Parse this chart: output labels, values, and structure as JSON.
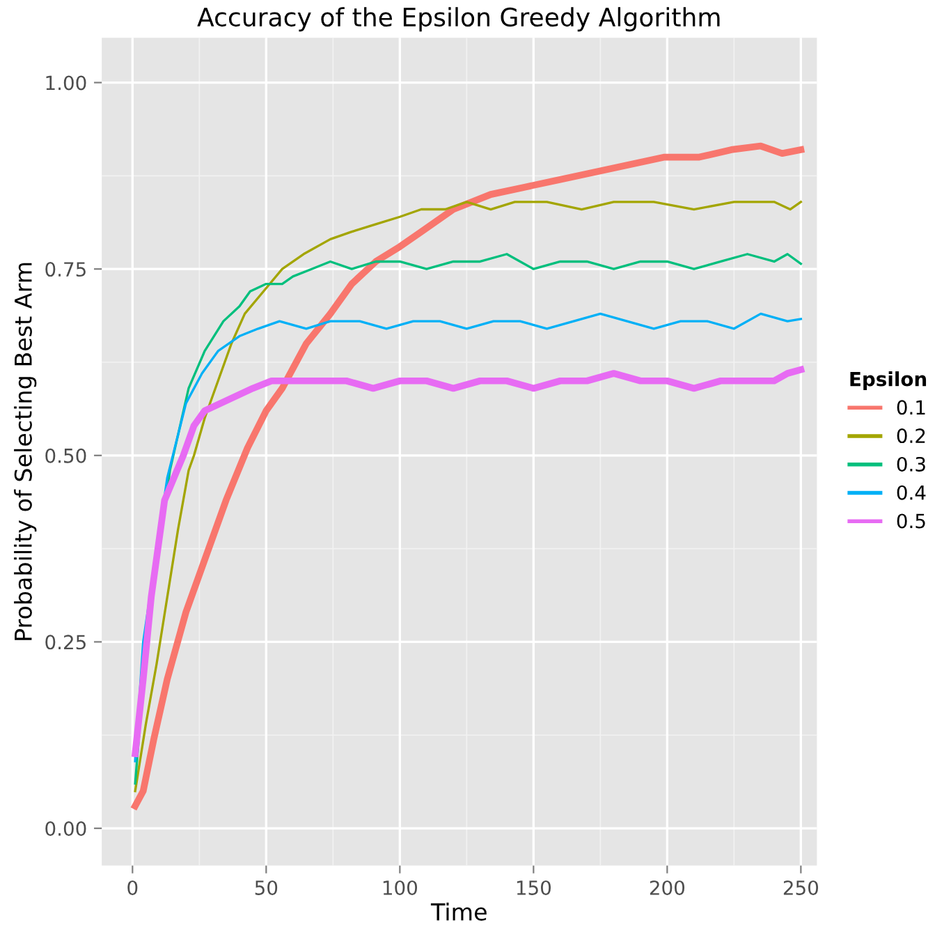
{
  "chart_data": {
    "type": "line",
    "title": "Accuracy of the Epsilon Greedy Algorithm",
    "xlabel": "Time",
    "ylabel": "Probability of Selecting Best Arm",
    "legend_title": "Epsilon",
    "legend": "right",
    "grid": true,
    "marker": "none",
    "line_style": "solid",
    "xlim": [
      -11.5,
      256
    ],
    "xticks": [
      0,
      50,
      100,
      150,
      200,
      250
    ],
    "ylim": [
      -0.05,
      1.06
    ],
    "yticks": [
      {
        "value": 0,
        "label": "0.00"
      },
      {
        "value": 0.25,
        "label": "0.25"
      },
      {
        "value": 0.5,
        "label": "0.50"
      },
      {
        "value": 0.75,
        "label": "0.75"
      },
      {
        "value": 1,
        "label": "1.00"
      }
    ],
    "series": [
      {
        "name": "0.1",
        "color": "#f8766d",
        "x": [
          1,
          4,
          8,
          13,
          20,
          27,
          35,
          43,
          50,
          56,
          65,
          74,
          82,
          91,
          100,
          108,
          120,
          134,
          147,
          160,
          173,
          186,
          199,
          212,
          224,
          235,
          243,
          250
        ],
        "values": [
          0.03,
          0.05,
          0.12,
          0.2,
          0.29,
          0.36,
          0.44,
          0.51,
          0.56,
          0.59,
          0.65,
          0.69,
          0.73,
          0.76,
          0.78,
          0.8,
          0.83,
          0.85,
          0.86,
          0.87,
          0.88,
          0.89,
          0.9,
          0.9,
          0.91,
          0.915,
          0.905,
          0.91
        ]
      },
      {
        "name": "0.2",
        "color": "#a3a500",
        "x": [
          1,
          5,
          9,
          13,
          17,
          21,
          23,
          27,
          32,
          37,
          42,
          49,
          56,
          64,
          74,
          82,
          91,
          100,
          108,
          117,
          125,
          134,
          143,
          155,
          168,
          180,
          195,
          210,
          225,
          240,
          246,
          250
        ],
        "values": [
          0.05,
          0.14,
          0.22,
          0.31,
          0.4,
          0.48,
          0.5,
          0.55,
          0.6,
          0.65,
          0.69,
          0.72,
          0.75,
          0.77,
          0.79,
          0.8,
          0.81,
          0.82,
          0.83,
          0.83,
          0.84,
          0.83,
          0.84,
          0.84,
          0.83,
          0.84,
          0.84,
          0.83,
          0.84,
          0.84,
          0.83,
          0.84
        ]
      },
      {
        "name": "0.3",
        "color": "#00bf7d",
        "x": [
          1,
          5,
          14,
          21,
          27,
          34,
          40,
          44,
          50,
          56,
          60,
          67,
          74,
          82,
          91,
          100,
          110,
          120,
          130,
          140,
          150,
          160,
          170,
          180,
          190,
          200,
          210,
          220,
          230,
          240,
          245,
          250
        ],
        "values": [
          0.06,
          0.24,
          0.48,
          0.59,
          0.64,
          0.68,
          0.7,
          0.72,
          0.73,
          0.73,
          0.74,
          0.75,
          0.76,
          0.75,
          0.76,
          0.76,
          0.75,
          0.76,
          0.76,
          0.77,
          0.75,
          0.76,
          0.76,
          0.75,
          0.76,
          0.76,
          0.75,
          0.76,
          0.77,
          0.76,
          0.77,
          0.757
        ]
      },
      {
        "name": "0.4",
        "color": "#00b0f6",
        "x": [
          1,
          4,
          13,
          20,
          26,
          32,
          40,
          47,
          55,
          65,
          74,
          85,
          95,
          105,
          115,
          125,
          135,
          145,
          155,
          165,
          175,
          185,
          195,
          205,
          215,
          225,
          235,
          245,
          250
        ],
        "values": [
          0.09,
          0.25,
          0.47,
          0.57,
          0.61,
          0.64,
          0.66,
          0.67,
          0.68,
          0.67,
          0.68,
          0.68,
          0.67,
          0.68,
          0.68,
          0.67,
          0.68,
          0.68,
          0.67,
          0.68,
          0.69,
          0.68,
          0.67,
          0.68,
          0.68,
          0.67,
          0.69,
          0.68,
          0.683
        ]
      },
      {
        "name": "0.5",
        "color": "#e76bf3",
        "x": [
          1,
          4,
          7,
          12,
          19,
          23,
          27,
          33,
          39,
          45,
          52,
          60,
          70,
          80,
          90,
          100,
          110,
          120,
          130,
          140,
          150,
          160,
          170,
          180,
          190,
          200,
          210,
          220,
          230,
          240,
          245,
          250
        ],
        "values": [
          0.1,
          0.2,
          0.31,
          0.44,
          0.5,
          0.54,
          0.56,
          0.57,
          0.58,
          0.59,
          0.6,
          0.6,
          0.6,
          0.6,
          0.59,
          0.6,
          0.6,
          0.59,
          0.6,
          0.6,
          0.59,
          0.6,
          0.6,
          0.61,
          0.6,
          0.6,
          0.59,
          0.6,
          0.6,
          0.6,
          0.61,
          0.615
        ]
      }
    ]
  }
}
